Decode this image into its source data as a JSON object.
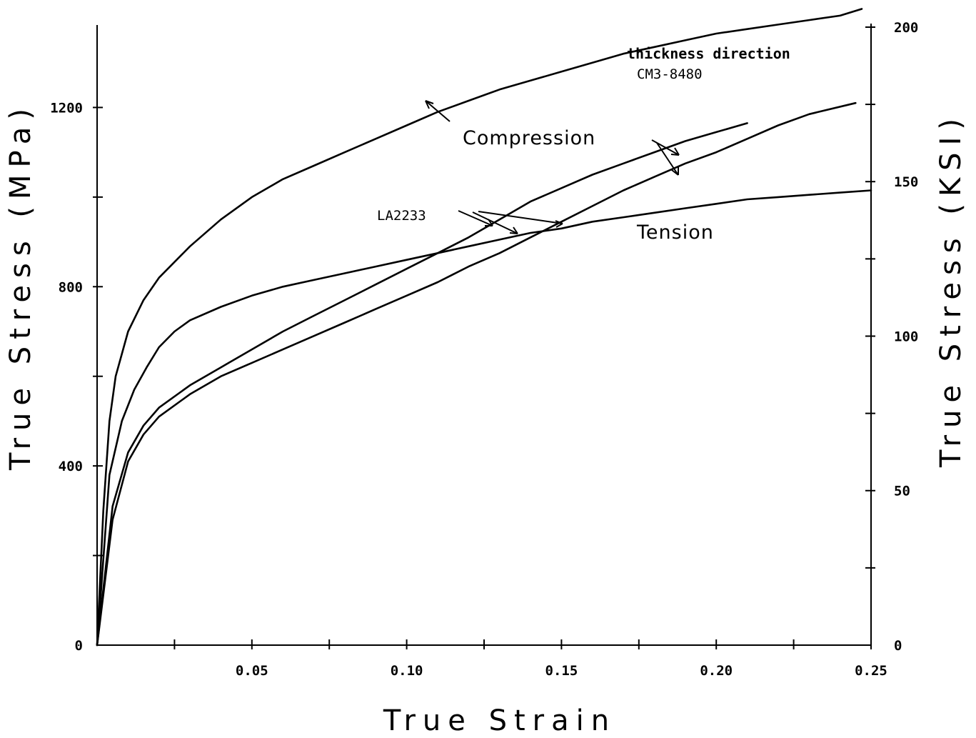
{
  "chart_data": {
    "type": "line",
    "xlabel": "True Strain",
    "ylabel_left": "True Stress (MPa)",
    "ylabel_right": "True Stress (KSI)",
    "xlim": [
      0,
      0.25
    ],
    "ylim_left": [
      0,
      1400
    ],
    "ylim_right": [
      0,
      203
    ],
    "x_ticks": [
      "0.05",
      "0.10",
      "0.15",
      "0.20",
      "0.25"
    ],
    "x_tick_values": [
      0.05,
      0.1,
      0.15,
      0.2,
      0.25
    ],
    "y_left_ticks": [
      "0",
      "400",
      "800",
      "1200"
    ],
    "y_left_tick_values": [
      0,
      400,
      800,
      1200
    ],
    "y_right_ticks": [
      "0",
      "50",
      "100",
      "150",
      "200"
    ],
    "y_right_tick_values": [
      0,
      50,
      100,
      150,
      200
    ],
    "grid": false,
    "annotations": {
      "thickness": "thickness direction",
      "cm3": "CM3-8480",
      "compression": "Compression",
      "la2233": "LA2233",
      "tension": "Tension"
    },
    "series": [
      {
        "points": [
          [
            0,
            0
          ],
          [
            0.002,
            300
          ],
          [
            0.004,
            500
          ],
          [
            0.006,
            600
          ],
          [
            0.008,
            650
          ],
          [
            0.01,
            700
          ],
          [
            0.015,
            770
          ],
          [
            0.02,
            820
          ],
          [
            0.03,
            890
          ],
          [
            0.04,
            950
          ],
          [
            0.05,
            1000
          ],
          [
            0.06,
            1040
          ],
          [
            0.07,
            1070
          ],
          [
            0.08,
            1100
          ],
          [
            0.09,
            1130
          ],
          [
            0.1,
            1160
          ],
          [
            0.11,
            1190
          ],
          [
            0.12,
            1215
          ],
          [
            0.13,
            1240
          ],
          [
            0.14,
            1260
          ],
          [
            0.15,
            1280
          ],
          [
            0.16,
            1300
          ],
          [
            0.17,
            1320
          ],
          [
            0.18,
            1335
          ],
          [
            0.19,
            1350
          ],
          [
            0.2,
            1365
          ],
          [
            0.21,
            1375
          ],
          [
            0.22,
            1385
          ],
          [
            0.23,
            1395
          ],
          [
            0.24,
            1405
          ],
          [
            0.247,
            1420
          ]
        ]
      },
      {
        "points": [
          [
            0,
            0
          ],
          [
            0.004,
            380
          ],
          [
            0.008,
            500
          ],
          [
            0.012,
            570
          ],
          [
            0.016,
            620
          ],
          [
            0.02,
            665
          ],
          [
            0.025,
            700
          ],
          [
            0.03,
            725
          ],
          [
            0.04,
            755
          ],
          [
            0.05,
            780
          ],
          [
            0.06,
            800
          ],
          [
            0.07,
            815
          ],
          [
            0.08,
            830
          ],
          [
            0.09,
            845
          ],
          [
            0.1,
            860
          ],
          [
            0.11,
            875
          ],
          [
            0.12,
            890
          ],
          [
            0.13,
            905
          ],
          [
            0.14,
            920
          ],
          [
            0.15,
            930
          ],
          [
            0.16,
            945
          ],
          [
            0.17,
            955
          ],
          [
            0.18,
            965
          ],
          [
            0.19,
            975
          ],
          [
            0.2,
            985
          ],
          [
            0.21,
            995
          ],
          [
            0.22,
            1000
          ],
          [
            0.23,
            1005
          ],
          [
            0.24,
            1010
          ],
          [
            0.25,
            1015
          ]
        ]
      },
      {
        "points": [
          [
            0,
            0
          ],
          [
            0.005,
            310
          ],
          [
            0.01,
            430
          ],
          [
            0.015,
            490
          ],
          [
            0.02,
            530
          ],
          [
            0.03,
            580
          ],
          [
            0.04,
            620
          ],
          [
            0.05,
            660
          ],
          [
            0.06,
            700
          ],
          [
            0.07,
            735
          ],
          [
            0.08,
            770
          ],
          [
            0.09,
            805
          ],
          [
            0.1,
            840
          ],
          [
            0.11,
            875
          ],
          [
            0.12,
            910
          ],
          [
            0.13,
            950
          ],
          [
            0.14,
            990
          ],
          [
            0.15,
            1020
          ],
          [
            0.16,
            1050
          ],
          [
            0.17,
            1075
          ],
          [
            0.18,
            1100
          ],
          [
            0.19,
            1125
          ],
          [
            0.2,
            1145
          ],
          [
            0.21,
            1165
          ]
        ]
      },
      {
        "points": [
          [
            0,
            0
          ],
          [
            0.005,
            280
          ],
          [
            0.01,
            410
          ],
          [
            0.015,
            470
          ],
          [
            0.02,
            510
          ],
          [
            0.03,
            560
          ],
          [
            0.04,
            600
          ],
          [
            0.05,
            630
          ],
          [
            0.06,
            660
          ],
          [
            0.07,
            690
          ],
          [
            0.08,
            720
          ],
          [
            0.09,
            750
          ],
          [
            0.1,
            780
          ],
          [
            0.11,
            810
          ],
          [
            0.12,
            845
          ],
          [
            0.13,
            875
          ],
          [
            0.14,
            910
          ],
          [
            0.15,
            945
          ],
          [
            0.16,
            980
          ],
          [
            0.17,
            1015
          ],
          [
            0.18,
            1045
          ],
          [
            0.19,
            1075
          ],
          [
            0.2,
            1100
          ],
          [
            0.21,
            1130
          ],
          [
            0.22,
            1160
          ],
          [
            0.23,
            1185
          ],
          [
            0.245,
            1210
          ]
        ]
      }
    ]
  }
}
